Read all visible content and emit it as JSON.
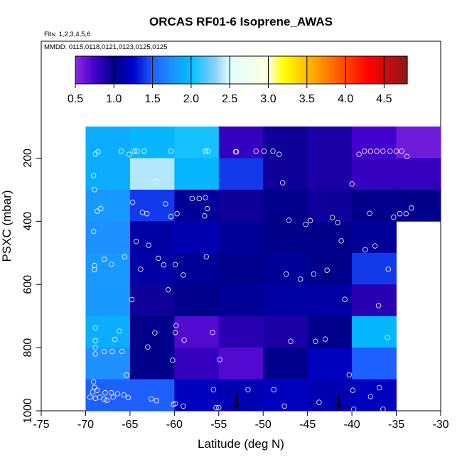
{
  "chart_data": {
    "type": "heatmap",
    "title": "ORCAS RF01-6 Isoprene_AWAS",
    "flights_note": "Flts: 1,2,3,4,5,6",
    "dates_note": "MMDD: 0115,0118,0121,0123,0125,0125",
    "xlabel": "Latitude (deg N)",
    "ylabel": "PSXC (mbar)",
    "xlim": [
      -75,
      -30
    ],
    "ylim": [
      1000,
      100
    ],
    "x_ticks": [
      "-75",
      "-70",
      "-65",
      "-60",
      "-55",
      "-50",
      "-45",
      "-40",
      "-35",
      "-30"
    ],
    "x_tick_values": [
      -75,
      -70,
      -65,
      -60,
      -55,
      -50,
      -45,
      -40,
      -35,
      -30
    ],
    "y_ticks": [
      "200",
      "400",
      "600",
      "800",
      "1000"
    ],
    "y_tick_values": [
      200,
      400,
      600,
      800,
      1000
    ],
    "colorbar": {
      "range": [
        0.5,
        4.8
      ],
      "ticks": [
        "0.5",
        "1.0",
        "1.5",
        "2.0",
        "2.5",
        "3.0",
        "3.5",
        "4.0",
        "4.5"
      ],
      "tick_values": [
        0.5,
        1.0,
        1.5,
        2.0,
        2.5,
        3.0,
        3.5,
        4.0,
        4.5
      ],
      "stops": [
        {
          "v": 0.5,
          "color": "#8a2be2"
        },
        {
          "v": 0.75,
          "color": "#4400cc"
        },
        {
          "v": 1.0,
          "color": "#00008b"
        },
        {
          "v": 1.25,
          "color": "#0000cc"
        },
        {
          "v": 1.5,
          "color": "#1e60ff"
        },
        {
          "v": 1.75,
          "color": "#1e90ff"
        },
        {
          "v": 2.0,
          "color": "#00bfff"
        },
        {
          "v": 2.3,
          "color": "#87cefa"
        },
        {
          "v": 2.5,
          "color": "#e0ffff"
        },
        {
          "v": 3.0,
          "color": "#ffffe0"
        },
        {
          "v": 3.2,
          "color": "#ffff00"
        },
        {
          "v": 3.6,
          "color": "#ffa500"
        },
        {
          "v": 4.0,
          "color": "#ff4500"
        },
        {
          "v": 4.3,
          "color": "#ff0000"
        },
        {
          "v": 4.8,
          "color": "#8b1a1a"
        }
      ]
    },
    "grid": {
      "lat_edges": [
        -70,
        -65,
        -60,
        -55,
        -50,
        -45,
        -40,
        -35,
        -30
      ],
      "p_edges": [
        100,
        200,
        300,
        400,
        500,
        600,
        700,
        800,
        900,
        1000
      ],
      "values": [
        [
          1.9,
          1.95,
          2.05,
          0.8,
          0.95,
          0.9,
          0.75,
          0.6
        ],
        [
          1.9,
          2.4,
          1.95,
          1.4,
          0.95,
          0.9,
          0.8,
          0.8
        ],
        [
          1.8,
          1.4,
          1.05,
          0.95,
          1.0,
          0.95,
          1.0,
          1.0
        ],
        [
          1.75,
          1.1,
          1.15,
          1.05,
          1.0,
          1.0,
          1.05,
          null
        ],
        [
          1.8,
          1.1,
          1.05,
          1.0,
          1.05,
          1.0,
          1.4,
          null
        ],
        [
          1.8,
          0.95,
          1.0,
          1.05,
          1.1,
          1.1,
          0.85,
          null
        ],
        [
          1.9,
          1.0,
          0.7,
          0.85,
          0.9,
          1.0,
          1.95,
          null
        ],
        [
          1.75,
          1.0,
          0.8,
          0.7,
          1.0,
          1.2,
          1.5,
          null
        ],
        [
          1.5,
          1.5,
          1.2,
          1.15,
          1.2,
          1.15,
          1.2,
          null
        ]
      ]
    },
    "samples": [
      {
        "lat": -68.6,
        "p": 180
      },
      {
        "lat": -66,
        "p": 178
      },
      {
        "lat": -65.1,
        "p": 188
      },
      {
        "lat": -64.5,
        "p": 178
      },
      {
        "lat": -64.2,
        "p": 178
      },
      {
        "lat": -63.4,
        "p": 178
      },
      {
        "lat": -60.4,
        "p": 178
      },
      {
        "lat": -56.5,
        "p": 178
      },
      {
        "lat": -56.2,
        "p": 178
      },
      {
        "lat": -53.1,
        "p": 180
      },
      {
        "lat": -53.0,
        "p": 180
      },
      {
        "lat": -50.8,
        "p": 178
      },
      {
        "lat": -49.9,
        "p": 178
      },
      {
        "lat": -48.9,
        "p": 178
      },
      {
        "lat": -48.2,
        "p": 188
      },
      {
        "lat": -39.2,
        "p": 188
      },
      {
        "lat": -38.6,
        "p": 178
      },
      {
        "lat": -37.9,
        "p": 178
      },
      {
        "lat": -37.2,
        "p": 178
      },
      {
        "lat": -36.5,
        "p": 178
      },
      {
        "lat": -35.7,
        "p": 178
      },
      {
        "lat": -35.0,
        "p": 178
      },
      {
        "lat": -34.4,
        "p": 178
      },
      {
        "lat": -33.8,
        "p": 195
      },
      {
        "lat": -68.9,
        "p": 187
      },
      {
        "lat": -69.1,
        "p": 255
      },
      {
        "lat": -69.0,
        "p": 300
      },
      {
        "lat": -62.1,
        "p": 275
      },
      {
        "lat": -47.8,
        "p": 278
      },
      {
        "lat": -40.0,
        "p": 282
      },
      {
        "lat": -58.0,
        "p": 328
      },
      {
        "lat": -57.2,
        "p": 328
      },
      {
        "lat": -56.5,
        "p": 325
      },
      {
        "lat": -64.7,
        "p": 340
      },
      {
        "lat": -61.0,
        "p": 345
      },
      {
        "lat": -68.3,
        "p": 360
      },
      {
        "lat": -68.7,
        "p": 368
      },
      {
        "lat": -63.6,
        "p": 372
      },
      {
        "lat": -63.1,
        "p": 376
      },
      {
        "lat": -59.7,
        "p": 376
      },
      {
        "lat": -60.4,
        "p": 385
      },
      {
        "lat": -56.6,
        "p": 383
      },
      {
        "lat": -56.3,
        "p": 360
      },
      {
        "lat": -47.1,
        "p": 397
      },
      {
        "lat": -44.7,
        "p": 398
      },
      {
        "lat": -45.2,
        "p": 410
      },
      {
        "lat": -42.2,
        "p": 388
      },
      {
        "lat": -41.6,
        "p": 404
      },
      {
        "lat": -38.0,
        "p": 375
      },
      {
        "lat": -35.3,
        "p": 387
      },
      {
        "lat": -34.6,
        "p": 376
      },
      {
        "lat": -33.9,
        "p": 376
      },
      {
        "lat": -33.3,
        "p": 358
      },
      {
        "lat": -69.1,
        "p": 432
      },
      {
        "lat": -64.3,
        "p": 464
      },
      {
        "lat": -62.9,
        "p": 476
      },
      {
        "lat": -41.2,
        "p": 462
      },
      {
        "lat": -37.4,
        "p": 478
      },
      {
        "lat": -38.5,
        "p": 490
      },
      {
        "lat": -67.9,
        "p": 520
      },
      {
        "lat": -65.6,
        "p": 512
      },
      {
        "lat": -61.8,
        "p": 517
      },
      {
        "lat": -56.4,
        "p": 512
      },
      {
        "lat": -69.0,
        "p": 540
      },
      {
        "lat": -67.1,
        "p": 536
      },
      {
        "lat": -69.0,
        "p": 553
      },
      {
        "lat": -63.8,
        "p": 552
      },
      {
        "lat": -61.2,
        "p": 538
      },
      {
        "lat": -59.9,
        "p": 537
      },
      {
        "lat": -59.0,
        "p": 570
      },
      {
        "lat": -47.4,
        "p": 567
      },
      {
        "lat": -45.8,
        "p": 583
      },
      {
        "lat": -44.3,
        "p": 567
      },
      {
        "lat": -42.8,
        "p": 555
      },
      {
        "lat": -35.9,
        "p": 552
      },
      {
        "lat": -60.7,
        "p": 617
      },
      {
        "lat": -64.8,
        "p": 648
      },
      {
        "lat": -40.8,
        "p": 647
      },
      {
        "lat": -37.0,
        "p": 667
      },
      {
        "lat": -68.9,
        "p": 737
      },
      {
        "lat": -59.8,
        "p": 730
      },
      {
        "lat": -66.2,
        "p": 748
      },
      {
        "lat": -62.2,
        "p": 753
      },
      {
        "lat": -59.9,
        "p": 752
      },
      {
        "lat": -58.9,
        "p": 776
      },
      {
        "lat": -55.7,
        "p": 752
      },
      {
        "lat": -68.9,
        "p": 778
      },
      {
        "lat": -66.7,
        "p": 774
      },
      {
        "lat": -46.9,
        "p": 780
      },
      {
        "lat": -44.1,
        "p": 780
      },
      {
        "lat": -43.0,
        "p": 773
      },
      {
        "lat": -36.0,
        "p": 768
      },
      {
        "lat": -68.9,
        "p": 800
      },
      {
        "lat": -68.9,
        "p": 820
      },
      {
        "lat": -67.9,
        "p": 812
      },
      {
        "lat": -67.0,
        "p": 812
      },
      {
        "lat": -65.9,
        "p": 812
      },
      {
        "lat": -63.0,
        "p": 798
      },
      {
        "lat": -60.2,
        "p": 840
      },
      {
        "lat": -54.9,
        "p": 838
      },
      {
        "lat": -65.4,
        "p": 887
      },
      {
        "lat": -40.3,
        "p": 886
      },
      {
        "lat": -69.1,
        "p": 908
      },
      {
        "lat": -69.0,
        "p": 926
      },
      {
        "lat": -69.2,
        "p": 940
      },
      {
        "lat": -68.7,
        "p": 935
      },
      {
        "lat": -67.8,
        "p": 943
      },
      {
        "lat": -67.1,
        "p": 943
      },
      {
        "lat": -66.4,
        "p": 946
      },
      {
        "lat": -65.7,
        "p": 950
      },
      {
        "lat": -69.5,
        "p": 957
      },
      {
        "lat": -68.9,
        "p": 960
      },
      {
        "lat": -68.4,
        "p": 957
      },
      {
        "lat": -67.9,
        "p": 963
      },
      {
        "lat": -67.6,
        "p": 967
      },
      {
        "lat": -66.9,
        "p": 957
      },
      {
        "lat": -65.2,
        "p": 958
      },
      {
        "lat": -62.6,
        "p": 962
      },
      {
        "lat": -62.0,
        "p": 968
      },
      {
        "lat": -59.9,
        "p": 977
      },
      {
        "lat": -60.1,
        "p": 980
      },
      {
        "lat": -59.0,
        "p": 985
      },
      {
        "lat": -55.6,
        "p": 933
      },
      {
        "lat": -55.3,
        "p": 990
      },
      {
        "lat": -55.0,
        "p": 990
      },
      {
        "lat": -51.7,
        "p": 933
      },
      {
        "lat": -48.8,
        "p": 933
      },
      {
        "lat": -47.6,
        "p": 985
      },
      {
        "lat": -43.7,
        "p": 973
      },
      {
        "lat": -39.8,
        "p": 995
      },
      {
        "lat": -37.9,
        "p": 955
      },
      {
        "lat": -36.9,
        "p": 927
      },
      {
        "lat": -39.9,
        "p": 935
      },
      {
        "lat": -36.5,
        "p": 995
      }
    ],
    "markers": [
      {
        "type": "arrow-down",
        "lat": -53.0
      },
      {
        "type": "arrow-down",
        "lat": -41.5
      }
    ]
  }
}
